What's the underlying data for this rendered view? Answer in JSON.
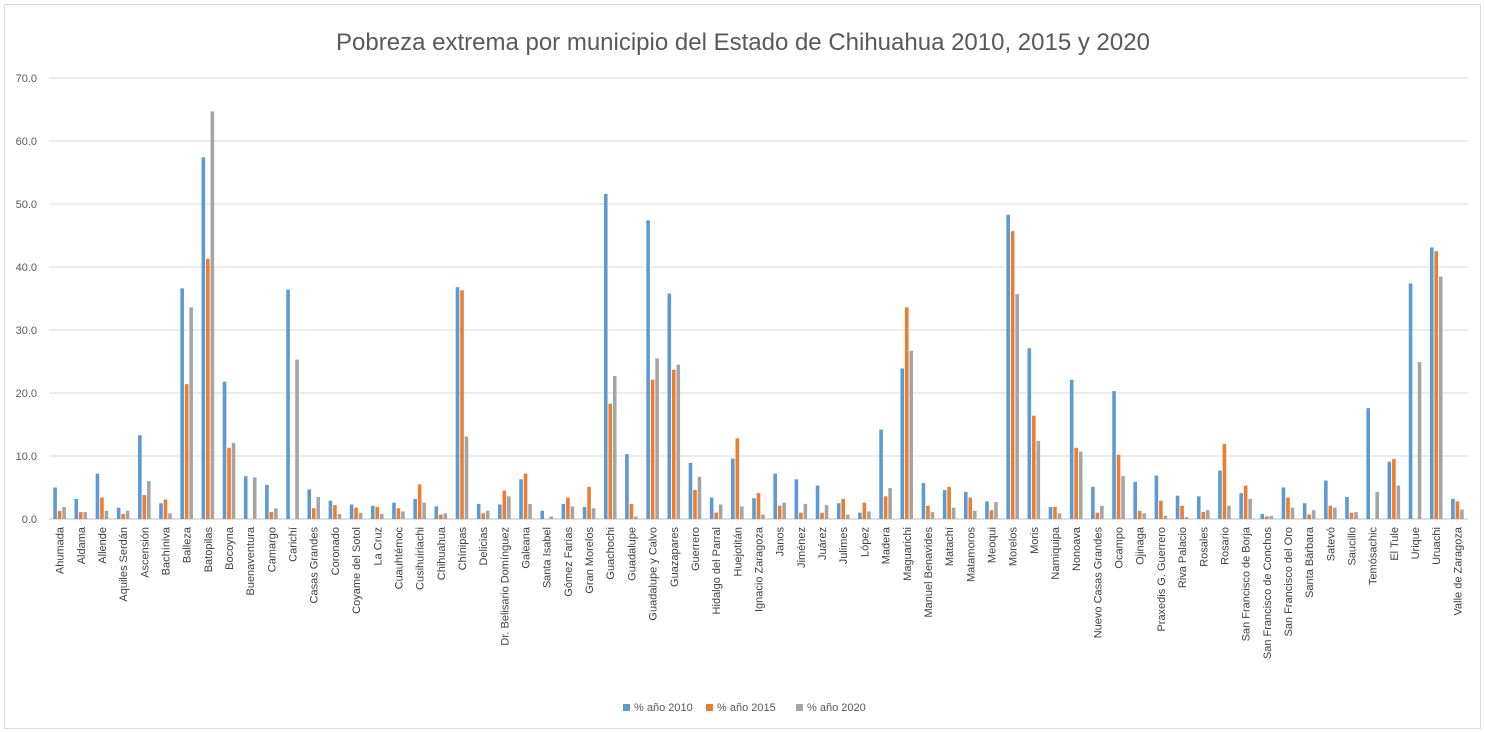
{
  "chart_data": {
    "type": "bar",
    "title": "Pobreza extrema por municipio del Estado de Chihuahua 2010, 2015 y 2020",
    "xlabel": "",
    "ylabel": "",
    "ylim": [
      0,
      70
    ],
    "yticks": [
      "0.0",
      "10.0",
      "20.0",
      "30.0",
      "40.0",
      "50.0",
      "60.0",
      "70.0"
    ],
    "grid": true,
    "legend_position": "bottom",
    "colors": [
      "#5b9bd5",
      "#ed7d31",
      "#a5a5a5"
    ],
    "categories": [
      "Ahumada",
      "Aldama",
      "Allende",
      "Aquiles Serdán",
      "Ascensión",
      "Bachíniva",
      "Balleza",
      "Batopilas",
      "Bocoyna",
      "Buenaventura",
      "Camargo",
      "Carichí",
      "Casas Grandes",
      "Coronado",
      "Coyame del Sotol",
      "La Cruz",
      "Cuauhtémoc",
      "Cusihuiriachi",
      "Chihuahua",
      "Chínipas",
      "Delicias",
      "Dr. Belisario Domínguez",
      "Galeana",
      "Santa Isabel",
      "Gómez Farías",
      "Gran Morelos",
      "Guachochi",
      "Guadalupe",
      "Guadalupe y Calvo",
      "Guazapares",
      "Guerrero",
      "Hidalgo del Parral",
      "Huejotitán",
      "Ignacio Zaragoza",
      "Janos",
      "Jiménez",
      "Juárez",
      "Julimes",
      "López",
      "Madera",
      "Maguarichi",
      "Manuel Benavides",
      "Matachí",
      "Matamoros",
      "Meoqui",
      "Morelos",
      "Moris",
      "Namiquipa",
      "Nonoava",
      "Nuevo Casas Grandes",
      "Ocampo",
      "Ojinaga",
      "Praxedis G. Guerrero",
      "Riva Palacio",
      "Rosales",
      "Rosario",
      "San Francisco de Borja",
      "San Francisco de Conchos",
      "San Francisco del Oro",
      "Santa Bárbara",
      "Satevó",
      "Saucillo",
      "Temósachic",
      "El Tule",
      "Urique",
      "Uruachi",
      "Valle de Zaragoza"
    ],
    "series": [
      {
        "name": "% año 2010",
        "values": [
          5.0,
          3.2,
          7.2,
          1.8,
          13.3,
          2.5,
          36.6,
          57.4,
          21.8,
          6.8,
          5.4,
          36.4,
          4.7,
          2.9,
          2.3,
          2.1,
          2.6,
          3.2,
          2.0,
          36.8,
          2.4,
          2.3,
          6.3,
          1.3,
          2.4,
          1.9,
          51.6,
          10.3,
          47.4,
          35.8,
          8.9,
          3.4,
          9.6,
          3.3,
          7.2,
          6.3,
          5.3,
          2.5,
          1.0,
          14.2,
          23.9,
          5.7,
          4.6,
          4.3,
          2.8,
          48.3,
          27.1,
          1.9,
          22.1,
          5.1,
          20.3,
          5.9,
          6.9,
          3.7,
          3.6,
          7.7,
          4.1,
          0.8,
          5.0,
          2.5,
          6.1,
          3.5,
          17.6,
          9.1,
          37.4,
          43.1,
          3.2
        ]
      },
      {
        "name": "% año 2015",
        "values": [
          1.3,
          1.1,
          3.4,
          0.8,
          3.8,
          3.1,
          21.4,
          41.3,
          11.3,
          0.0,
          1.1,
          0.0,
          1.7,
          2.2,
          1.8,
          1.9,
          1.7,
          5.5,
          0.7,
          36.3,
          0.9,
          4.5,
          7.2,
          0.0,
          3.4,
          5.1,
          18.3,
          2.4,
          22.1,
          23.7,
          4.6,
          1.0,
          12.8,
          4.1,
          2.1,
          1.0,
          1.0,
          3.2,
          2.6,
          3.6,
          33.6,
          2.1,
          5.1,
          3.4,
          1.4,
          45.7,
          16.4,
          1.9,
          11.3,
          1.0,
          10.2,
          1.3,
          2.9,
          2.1,
          1.1,
          11.9,
          5.3,
          0.4,
          3.4,
          0.7,
          2.1,
          1.0,
          0.0,
          9.5,
          0.0,
          42.5,
          2.8
        ]
      },
      {
        "name": "% año 2020",
        "values": [
          1.9,
          1.1,
          1.3,
          1.3,
          6.0,
          0.9,
          33.6,
          64.7,
          12.1,
          6.6,
          1.7,
          25.3,
          3.5,
          0.8,
          1.0,
          0.8,
          1.2,
          2.6,
          0.9,
          13.1,
          1.3,
          3.6,
          2.4,
          0.4,
          2.0,
          1.7,
          22.7,
          0.4,
          25.5,
          24.5,
          6.7,
          2.3,
          2.0,
          0.7,
          2.6,
          2.4,
          2.2,
          0.7,
          1.2,
          4.9,
          26.7,
          1.1,
          1.8,
          1.3,
          2.7,
          35.7,
          12.4,
          0.9,
          10.7,
          2.1,
          6.8,
          0.9,
          0.5,
          0.3,
          1.4,
          2.1,
          3.2,
          0.5,
          1.8,
          1.4,
          1.8,
          1.1,
          4.3,
          5.3,
          24.9,
          38.5,
          1.5
        ]
      }
    ]
  }
}
